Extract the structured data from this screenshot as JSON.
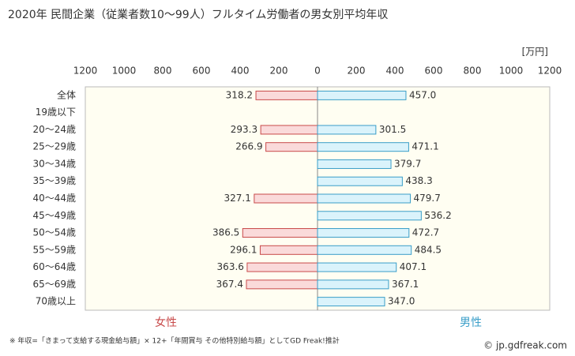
{
  "chart_data": {
    "type": "butterfly",
    "title": "2020年 民間企業（従業者数10〜99人）フルタイム労働者の男女別平均年収",
    "unit": "[万円]",
    "categories": [
      "全体",
      "19歳以下",
      "20〜24歳",
      "25〜29歳",
      "30〜34歳",
      "35〜39歳",
      "40〜44歳",
      "45〜49歳",
      "50〜54歳",
      "55〜59歳",
      "60〜64歳",
      "65〜69歳",
      "70歳以上"
    ],
    "series": [
      {
        "name": "女性",
        "side": "left",
        "color": "#fadada",
        "edge": "#c84a4a",
        "values": [
          318.2,
          null,
          293.3,
          266.9,
          null,
          null,
          327.1,
          null,
          386.5,
          296.1,
          363.6,
          367.4,
          null
        ],
        "value_labels": [
          "318.2",
          null,
          "293.3",
          "266.9",
          null,
          null,
          "327.1",
          null,
          "386.5",
          "296.1",
          "363.6",
          "367.4",
          null
        ]
      },
      {
        "name": "男性",
        "side": "right",
        "color": "#daf3fb",
        "edge": "#3a9ec8",
        "values": [
          457.0,
          null,
          301.5,
          471.1,
          379.7,
          438.3,
          479.7,
          536.2,
          472.7,
          484.5,
          407.1,
          367.1,
          347.0
        ],
        "value_labels": [
          "457.0",
          null,
          "301.5",
          "471.1",
          "379.7",
          "438.3",
          "479.7",
          "536.2",
          "472.7",
          "484.5",
          "407.1",
          "367.1",
          "347.0"
        ]
      }
    ],
    "xlim": [
      -1200,
      1200
    ],
    "xticks": [
      {
        "value": -1200,
        "label": "1200"
      },
      {
        "value": -1000,
        "label": "1000"
      },
      {
        "value": -800,
        "label": "800"
      },
      {
        "value": -600,
        "label": "600"
      },
      {
        "value": -400,
        "label": "400"
      },
      {
        "value": -200,
        "label": "200"
      },
      0,
      200,
      400,
      600,
      800,
      1000,
      1200
    ],
    "note": "※ 年収=「きまって支給する現金給与額」× 12+「年間賞与 その他特別給与額」としてGD Freak!推計",
    "source": "© jp.gdfreak.com"
  }
}
